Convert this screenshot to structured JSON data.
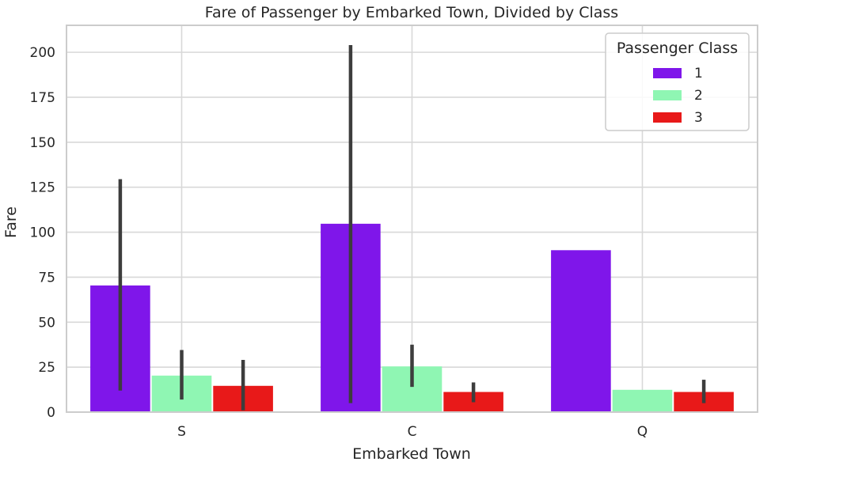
{
  "chart_data": {
    "type": "bar",
    "title": "Fare of Passenger by Embarked Town, Divided by Class",
    "xlabel": "Embarked Town",
    "ylabel": "Fare",
    "ylim": [
      0,
      215
    ],
    "yticks": [
      0,
      25,
      50,
      75,
      100,
      125,
      150,
      175,
      200
    ],
    "grid": true,
    "categories": [
      "S",
      "C",
      "Q"
    ],
    "legend": {
      "title": "Passenger Class",
      "placement": "top-right"
    },
    "series": [
      {
        "name": "1",
        "color": "#7f16ea",
        "values": [
          70.4,
          104.7,
          90.0
        ],
        "ci_low": [
          12,
          5,
          null
        ],
        "ci_high": [
          129.5,
          204,
          null
        ]
      },
      {
        "name": "2",
        "color": "#8ff6b3",
        "values": [
          20.3,
          25.4,
          12.4
        ],
        "ci_low": [
          7,
          14,
          null
        ],
        "ci_high": [
          34.5,
          37.5,
          null
        ]
      },
      {
        "name": "3",
        "color": "#e81919",
        "values": [
          14.6,
          11.2,
          11.2
        ],
        "ci_low": [
          1,
          5.5,
          5
        ],
        "ci_high": [
          29,
          16.5,
          18
        ]
      }
    ]
  }
}
